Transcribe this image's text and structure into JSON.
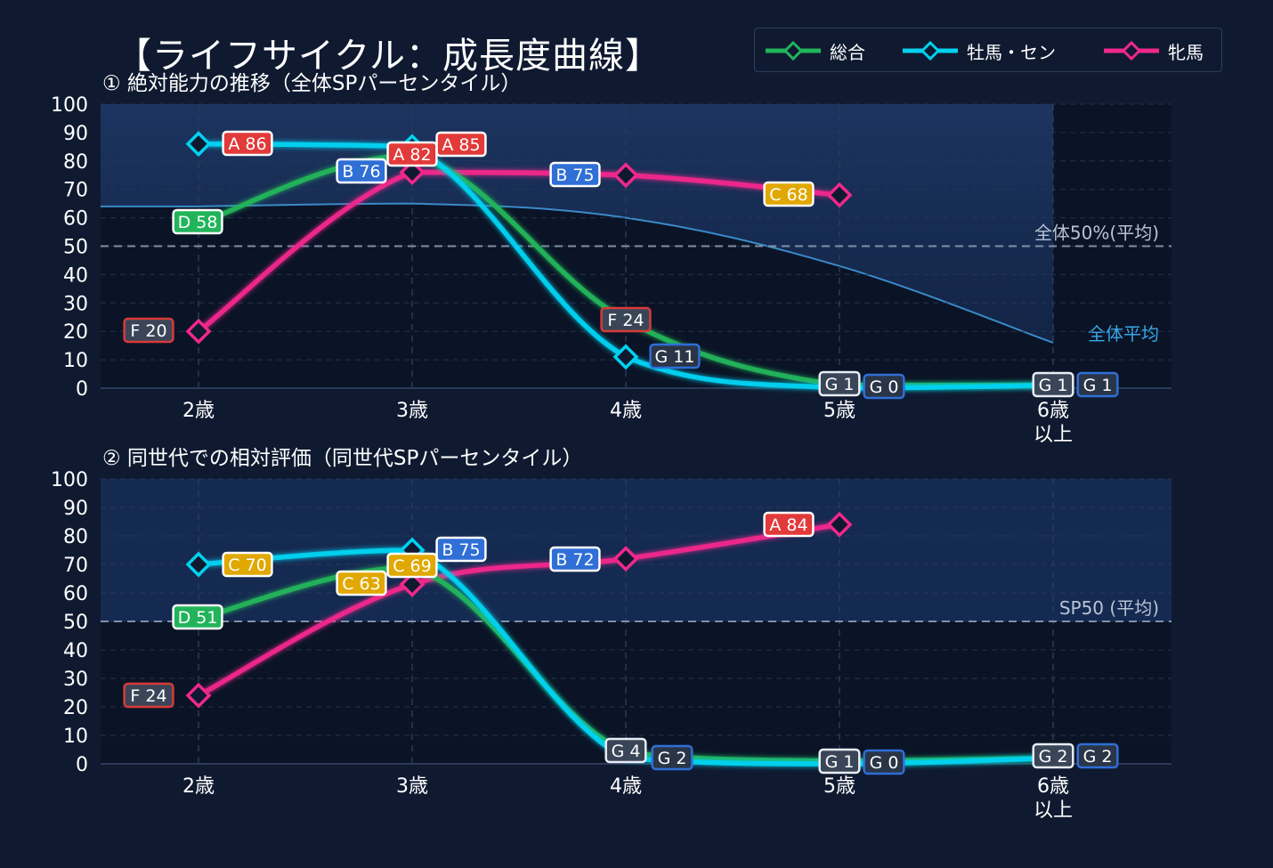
{
  "title": "【ライフサイクル：成長度曲線】",
  "legend": [
    {
      "name": "総合",
      "color": "#22b45a"
    },
    {
      "name": "牡馬・セン",
      "color": "#00d2f0"
    },
    {
      "name": "牝馬",
      "color": "#f0288c"
    }
  ],
  "chart_data": [
    {
      "type": "line",
      "title": "① 絶対能力の推移（全体SPパーセンタイル）",
      "categories": [
        "2歳",
        "3歳",
        "4歳",
        "5歳",
        "6歳\n以上"
      ],
      "ylim": [
        0,
        100
      ],
      "yticks": [
        0,
        10,
        20,
        30,
        40,
        50,
        60,
        70,
        80,
        90,
        100
      ],
      "grid": true,
      "reference_line": {
        "value": 50,
        "label": "全体50%(平均)"
      },
      "average_curve": {
        "label": "全体平均",
        "values": [
          64,
          65,
          60,
          43,
          16
        ]
      },
      "series": [
        {
          "name": "総合",
          "values": [
            58,
            82,
            24,
            1,
            1
          ],
          "labels": [
            "D 58",
            "A 82",
            "F 24",
            "G 1",
            "G 1"
          ]
        },
        {
          "name": "牡馬・セン",
          "values": [
            86,
            85,
            11,
            0,
            1
          ],
          "labels": [
            "A 86",
            "A 85",
            "G 11",
            "G 0",
            "G 1"
          ]
        },
        {
          "name": "牝馬",
          "values": [
            20,
            76,
            75,
            68,
            null
          ],
          "labels": [
            "F 20",
            "B 76",
            "B 75",
            "C 68",
            ""
          ]
        }
      ]
    },
    {
      "type": "line",
      "title": "② 同世代での相対評価（同世代SPパーセンタイル）",
      "categories": [
        "2歳",
        "3歳",
        "4歳",
        "5歳",
        "6歳\n以上"
      ],
      "ylim": [
        0,
        100
      ],
      "yticks": [
        0,
        10,
        20,
        30,
        40,
        50,
        60,
        70,
        80,
        90,
        100
      ],
      "grid": true,
      "reference_line": {
        "value": 50,
        "label": "SP50 (平均)"
      },
      "series": [
        {
          "name": "総合",
          "values": [
            51,
            69,
            4,
            1,
            2
          ],
          "labels": [
            "D 51",
            "C 69",
            "G 4",
            "G 1",
            "G 2"
          ]
        },
        {
          "name": "牡馬・セン",
          "values": [
            70,
            75,
            2,
            0,
            2
          ],
          "labels": [
            "C 70",
            "B 75",
            "G 2",
            "G 0",
            "G 2"
          ]
        },
        {
          "name": "牝馬",
          "values": [
            24,
            63,
            72,
            84,
            null
          ],
          "labels": [
            "F 24",
            "C 63",
            "B 72",
            "A 84",
            ""
          ]
        }
      ]
    }
  ],
  "grade_colors": {
    "A": "#e23a3a",
    "B": "#2f6fd6",
    "C": "#e0a800",
    "D": "#22b45a",
    "F": "#3a4658",
    "G": "#3a4658"
  }
}
